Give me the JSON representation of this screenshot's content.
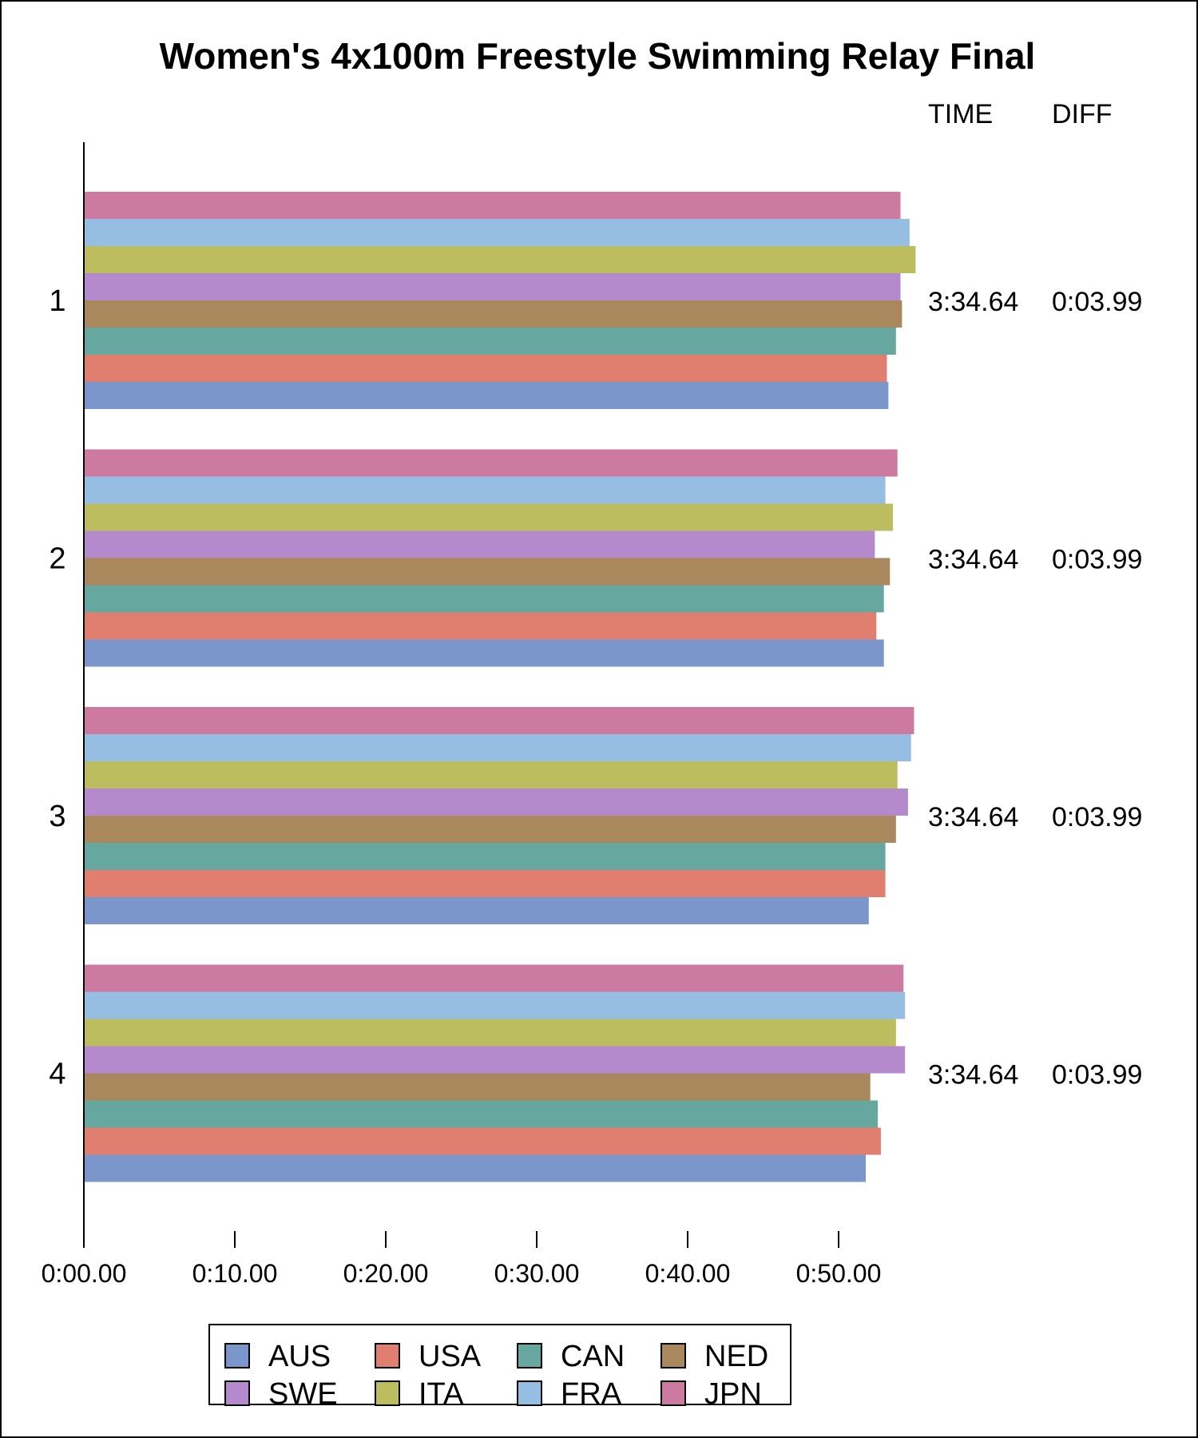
{
  "chart_data": {
    "type": "bar",
    "orientation": "horizontal",
    "title": "Women's 4x100m Freestyle Swimming Relay Final",
    "categories": [
      "1",
      "2",
      "3",
      "4"
    ],
    "x_unit": "seconds",
    "xlim": [
      0,
      55
    ],
    "x_ticks": [
      0,
      10,
      20,
      30,
      40,
      50
    ],
    "x_tick_labels": [
      "0:00.00",
      "0:10.00",
      "0:20.00",
      "0:30.00",
      "0:40.00",
      "0:50.00"
    ],
    "series": [
      {
        "name": "AUS",
        "color": "#7b96cb",
        "values": [
          53.3,
          53.0,
          52.0,
          51.8
        ]
      },
      {
        "name": "USA",
        "color": "#e07f70",
        "values": [
          53.2,
          52.5,
          53.1,
          52.8
        ]
      },
      {
        "name": "CAN",
        "color": "#66a8a0",
        "values": [
          53.8,
          53.0,
          53.1,
          52.6
        ]
      },
      {
        "name": "NED",
        "color": "#a8885c",
        "values": [
          54.2,
          53.4,
          53.8,
          52.1
        ]
      },
      {
        "name": "SWE",
        "color": "#b48acc",
        "values": [
          54.1,
          52.4,
          54.6,
          54.4
        ]
      },
      {
        "name": "ITA",
        "color": "#bcbd5f",
        "values": [
          55.1,
          53.6,
          53.9,
          53.8
        ]
      },
      {
        "name": "FRA",
        "color": "#96bde2",
        "values": [
          54.7,
          53.1,
          54.8,
          54.4
        ]
      },
      {
        "name": "JPN",
        "color": "#cd7aa0",
        "values": [
          54.1,
          53.9,
          55.0,
          54.3
        ]
      }
    ],
    "table": {
      "headers": {
        "time": "TIME",
        "diff": "DIFF"
      },
      "rows": [
        {
          "time": "3:34.64",
          "diff": "0:03.99"
        },
        {
          "time": "3:34.64",
          "diff": "0:03.99"
        },
        {
          "time": "3:34.64",
          "diff": "0:03.99"
        },
        {
          "time": "3:34.64",
          "diff": "0:03.99"
        }
      ]
    },
    "legend": {
      "position": "bottom",
      "columns": 4
    },
    "grid": false
  }
}
